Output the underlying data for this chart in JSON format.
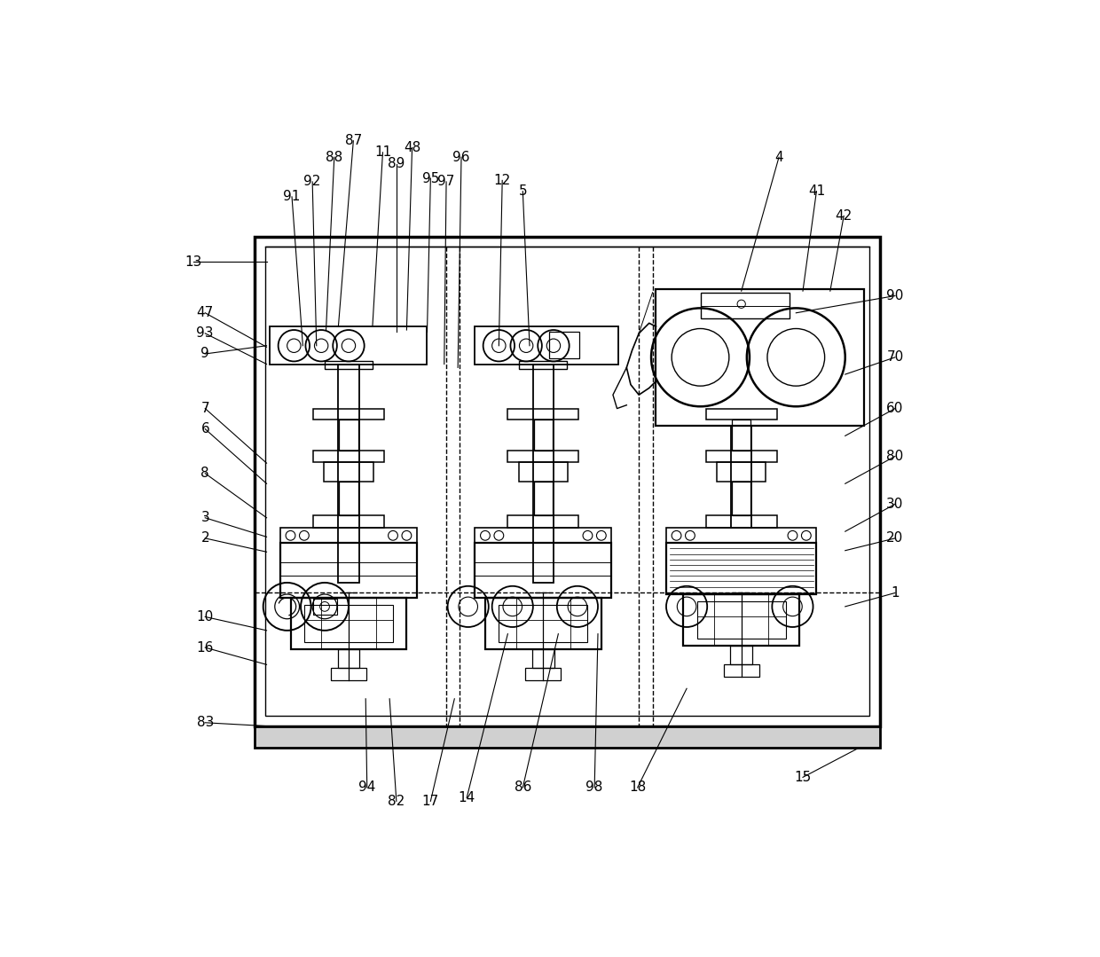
{
  "bg_color": "#ffffff",
  "line_color": "#000000",
  "label_color": "#000000",
  "fig_width": 12.4,
  "fig_height": 10.79
}
